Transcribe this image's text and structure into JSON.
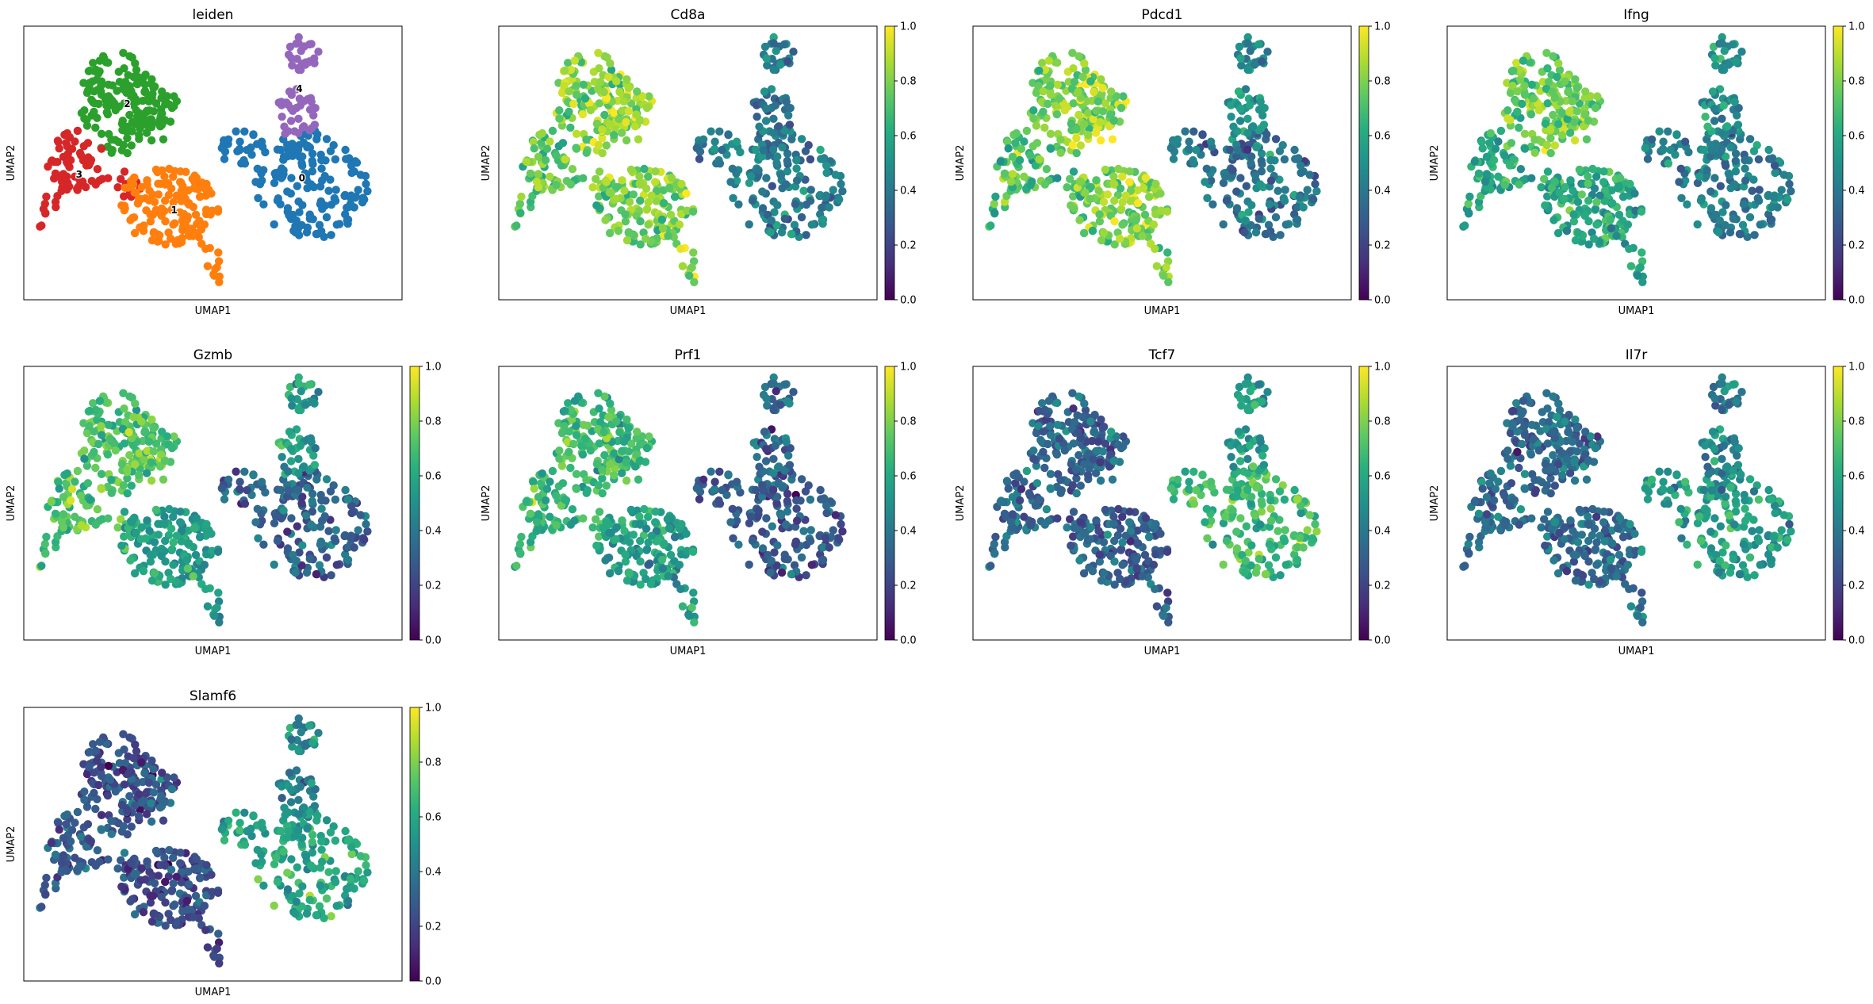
{
  "chart_data": [
    {
      "type": "scatter",
      "panel": "leiden",
      "title": "leiden",
      "xlabel": "UMAP1",
      "ylabel": "UMAP2",
      "ticks_visible": false,
      "grid": false,
      "color_mode": "categorical",
      "cluster_labels": [
        "0",
        "1",
        "2",
        "3",
        "4"
      ],
      "cluster_colors": {
        "0": "#1f77b4",
        "1": "#ff7f0e",
        "2": "#2ca02c",
        "3": "#d62728",
        "4": "#9467bd"
      }
    },
    {
      "type": "scatter",
      "panel": "gene",
      "title": "Cd8a",
      "xlabel": "UMAP1",
      "ylabel": "UMAP2",
      "ticks_visible": false,
      "grid": false,
      "colorbar_range": [
        0,
        1
      ],
      "colorbar_ticks": [
        "0.0",
        "0.2",
        "0.4",
        "0.6",
        "0.8",
        "1.0"
      ],
      "colormap": "viridis",
      "cluster_levels": {
        "0": 0.42,
        "1": 0.8,
        "2": 0.82,
        "3": 0.74,
        "4": 0.4
      }
    },
    {
      "type": "scatter",
      "panel": "gene",
      "title": "Pdcd1",
      "xlabel": "UMAP1",
      "ylabel": "UMAP2",
      "ticks_visible": false,
      "grid": false,
      "colorbar_range": [
        0,
        1
      ],
      "colorbar_ticks": [
        "0.0",
        "0.2",
        "0.4",
        "0.6",
        "0.8",
        "1.0"
      ],
      "colormap": "viridis",
      "cluster_levels": {
        "0": 0.4,
        "1": 0.8,
        "2": 0.8,
        "3": 0.7,
        "4": 0.5
      }
    },
    {
      "type": "scatter",
      "panel": "gene",
      "title": "Ifng",
      "xlabel": "UMAP1",
      "ylabel": "UMAP2",
      "ticks_visible": false,
      "grid": false,
      "colorbar_range": [
        0,
        1
      ],
      "colorbar_ticks": [
        "0.0",
        "0.2",
        "0.4",
        "0.6",
        "0.8",
        "1.0"
      ],
      "colormap": "viridis",
      "cluster_levels": {
        "0": 0.42,
        "1": 0.6,
        "2": 0.78,
        "3": 0.6,
        "4": 0.5
      }
    },
    {
      "type": "scatter",
      "panel": "gene",
      "title": "Gzmb",
      "xlabel": "UMAP1",
      "ylabel": "UMAP2",
      "ticks_visible": false,
      "grid": false,
      "colorbar_range": [
        0,
        1
      ],
      "colorbar_ticks": [
        "0.0",
        "0.2",
        "0.4",
        "0.6",
        "0.8",
        "1.0"
      ],
      "colormap": "viridis",
      "cluster_levels": {
        "0": 0.32,
        "1": 0.55,
        "2": 0.72,
        "3": 0.7,
        "4": 0.55
      }
    },
    {
      "type": "scatter",
      "panel": "gene",
      "title": "Prf1",
      "xlabel": "UMAP1",
      "ylabel": "UMAP2",
      "ticks_visible": false,
      "grid": false,
      "colorbar_range": [
        0,
        1
      ],
      "colorbar_ticks": [
        "0.0",
        "0.2",
        "0.4",
        "0.6",
        "0.8",
        "1.0"
      ],
      "colormap": "viridis",
      "cluster_levels": {
        "0": 0.28,
        "1": 0.55,
        "2": 0.68,
        "3": 0.65,
        "4": 0.35
      }
    },
    {
      "type": "scatter",
      "panel": "gene",
      "title": "Tcf7",
      "xlabel": "UMAP1",
      "ylabel": "UMAP2",
      "ticks_visible": false,
      "grid": false,
      "colorbar_range": [
        0,
        1
      ],
      "colorbar_ticks": [
        "0.0",
        "0.2",
        "0.4",
        "0.6",
        "0.8",
        "1.0"
      ],
      "colormap": "viridis",
      "cluster_levels": {
        "0": 0.68,
        "1": 0.32,
        "2": 0.32,
        "3": 0.33,
        "4": 0.55
      }
    },
    {
      "type": "scatter",
      "panel": "gene",
      "title": "Il7r",
      "xlabel": "UMAP1",
      "ylabel": "UMAP2",
      "ticks_visible": false,
      "grid": false,
      "colorbar_range": [
        0,
        1
      ],
      "colorbar_ticks": [
        "0.0",
        "0.2",
        "0.4",
        "0.6",
        "0.8",
        "1.0"
      ],
      "colormap": "viridis",
      "cluster_levels": {
        "0": 0.55,
        "1": 0.35,
        "2": 0.35,
        "3": 0.35,
        "4": 0.45
      }
    },
    {
      "type": "scatter",
      "panel": "gene",
      "title": "Slamf6",
      "xlabel": "UMAP1",
      "ylabel": "UMAP2",
      "ticks_visible": false,
      "grid": false,
      "colorbar_range": [
        0,
        1
      ],
      "colorbar_ticks": [
        "0.0",
        "0.2",
        "0.4",
        "0.6",
        "0.8",
        "1.0"
      ],
      "colormap": "viridis",
      "cluster_levels": {
        "0": 0.6,
        "1": 0.25,
        "2": 0.25,
        "3": 0.3,
        "4": 0.45
      }
    }
  ]
}
